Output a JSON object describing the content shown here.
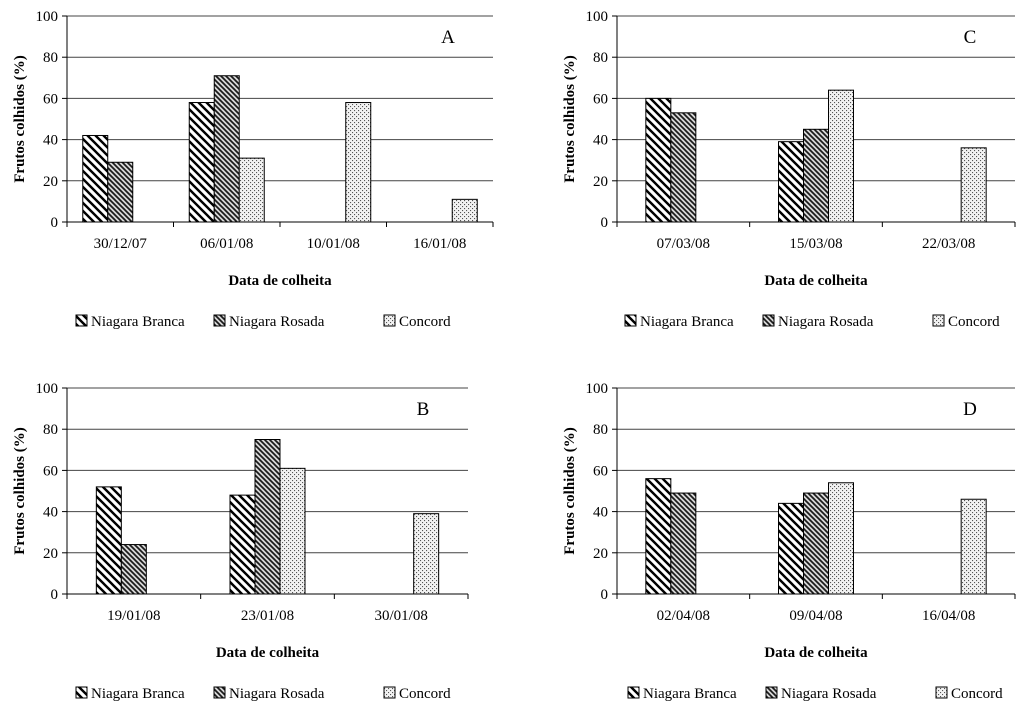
{
  "chart_data": [
    {
      "panel": "A",
      "type": "bar",
      "categories": [
        "30/12/07",
        "06/01/08",
        "10/01/08",
        "16/01/08"
      ],
      "series": [
        {
          "name": "Niagara Branca",
          "values": [
            42,
            58,
            null,
            null
          ]
        },
        {
          "name": "Niagara Rosada",
          "values": [
            29,
            71,
            null,
            null
          ]
        },
        {
          "name": "Concord",
          "values": [
            null,
            31,
            58,
            11
          ]
        }
      ],
      "xlabel": "Data de colheita",
      "ylabel": "Frutos colhidos (%)",
      "ylim": [
        0,
        100
      ],
      "yticks": [
        0,
        20,
        40,
        60,
        80,
        100
      ],
      "grid": true,
      "legend": "bottom"
    },
    {
      "panel": "C",
      "type": "bar",
      "categories": [
        "07/03/08",
        "15/03/08",
        "22/03/08"
      ],
      "series": [
        {
          "name": "Niagara Branca",
          "values": [
            60,
            39,
            null
          ]
        },
        {
          "name": "Niagara Rosada",
          "values": [
            53,
            45,
            null
          ]
        },
        {
          "name": "Concord",
          "values": [
            null,
            64,
            36
          ]
        }
      ],
      "xlabel": "Data de colheita",
      "ylabel": "Frutos colhidos (%)",
      "ylim": [
        0,
        100
      ],
      "yticks": [
        0,
        20,
        40,
        60,
        80,
        100
      ],
      "grid": true,
      "legend": "bottom"
    },
    {
      "panel": "B",
      "type": "bar",
      "categories": [
        "19/01/08",
        "23/01/08",
        "30/01/08"
      ],
      "series": [
        {
          "name": "Niagara Branca",
          "values": [
            52,
            48,
            null
          ]
        },
        {
          "name": "Niagara Rosada",
          "values": [
            24,
            75,
            null
          ]
        },
        {
          "name": "Concord",
          "values": [
            null,
            61,
            39
          ]
        }
      ],
      "xlabel": "Data de colheita",
      "ylabel": "Frutos colhidos (%)",
      "ylim": [
        0,
        100
      ],
      "yticks": [
        0,
        20,
        40,
        60,
        80,
        100
      ],
      "grid": true,
      "legend": "bottom"
    },
    {
      "panel": "D",
      "type": "bar",
      "categories": [
        "02/04/08",
        "09/04/08",
        "16/04/08"
      ],
      "series": [
        {
          "name": "Niagara Branca",
          "values": [
            56,
            44,
            null
          ]
        },
        {
          "name": "Niagara Rosada",
          "values": [
            49,
            49,
            null
          ]
        },
        {
          "name": "Concord",
          "values": [
            null,
            54,
            46
          ]
        }
      ],
      "xlabel": "Data de colheita",
      "ylabel": "Frutos colhidos (%)",
      "ylim": [
        0,
        100
      ],
      "yticks": [
        0,
        20,
        40,
        60,
        80,
        100
      ],
      "grid": true,
      "legend": "bottom"
    }
  ]
}
